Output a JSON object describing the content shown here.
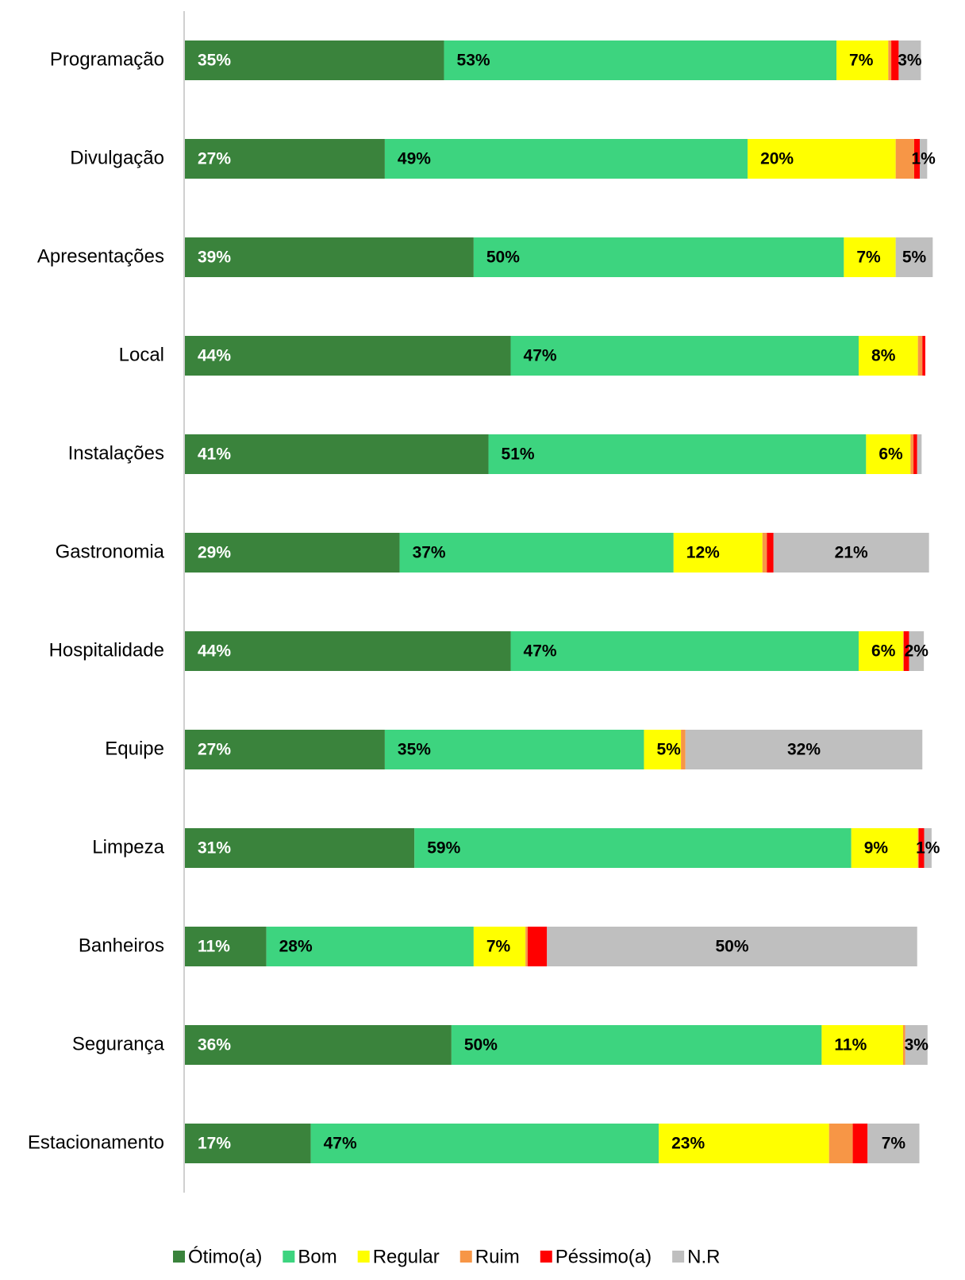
{
  "chart_data": {
    "type": "stacked-bar",
    "orientation": "horizontal",
    "categories": [
      "Programação",
      "Divulgação",
      "Apresentações",
      "Local",
      "Instalações",
      "Gastronomia",
      "Hospitalidade",
      "Equipe",
      "Limpeza",
      "Banheiros",
      "Segurança",
      "Estacionamento"
    ],
    "xlim": [
      0,
      100
    ],
    "series": [
      {
        "name": "Ótimo(a)",
        "color": "#3a833c",
        "values": [
          35,
          27,
          39,
          44,
          41,
          29,
          44,
          27,
          31,
          11,
          36,
          17
        ],
        "value_labels": [
          "35%",
          "27%",
          "39%",
          "44%",
          "41%",
          "29%",
          "44%",
          "27%",
          "31%",
          "11%",
          "36%",
          "17%"
        ]
      },
      {
        "name": "Bom",
        "color": "#3dd47f",
        "values": [
          53,
          49,
          50,
          47,
          51,
          37,
          47,
          35,
          59,
          28,
          50,
          47
        ],
        "value_labels": [
          "53%",
          "49%",
          "50%",
          "47%",
          "51%",
          "37%",
          "47%",
          "35%",
          "59%",
          "28%",
          "50%",
          "47%"
        ]
      },
      {
        "name": "Regular",
        "color": "#ffff00",
        "values": [
          7,
          20,
          7,
          8,
          6,
          12,
          6,
          5,
          9,
          7,
          11,
          23
        ],
        "value_labels": [
          "7%",
          "20%",
          "7%",
          "8%",
          "6%",
          "12%",
          "6%",
          "5%",
          "9%",
          "7%",
          "11%",
          "23%"
        ]
      },
      {
        "name": "Ruim",
        "color": "#f79646",
        "values": [
          0.4,
          2.5,
          0,
          0.6,
          0.4,
          0.6,
          0.1,
          0.6,
          0.1,
          0.3,
          0.3,
          3.2
        ],
        "value_labels": [
          null,
          null,
          null,
          null,
          null,
          null,
          null,
          null,
          null,
          null,
          null,
          null
        ]
      },
      {
        "name": "Péssimo(a)",
        "color": "#ff0000",
        "values": [
          1,
          0.75,
          0,
          0.4,
          0.5,
          0.9,
          0.7,
          0,
          0.75,
          2.6,
          0,
          2
        ],
        "value_labels": [
          null,
          null,
          null,
          null,
          null,
          null,
          null,
          null,
          null,
          null,
          null,
          null
        ]
      },
      {
        "name": "N.R",
        "color": "#bfbfbf",
        "values": [
          3,
          1,
          5,
          0,
          0.6,
          21,
          2,
          32,
          1,
          50,
          3,
          7
        ],
        "value_labels": [
          "3%",
          "1%",
          "5%",
          null,
          null,
          "21%",
          "2%",
          "32%",
          "1%",
          "50%",
          "3%",
          "7%"
        ]
      }
    ]
  }
}
